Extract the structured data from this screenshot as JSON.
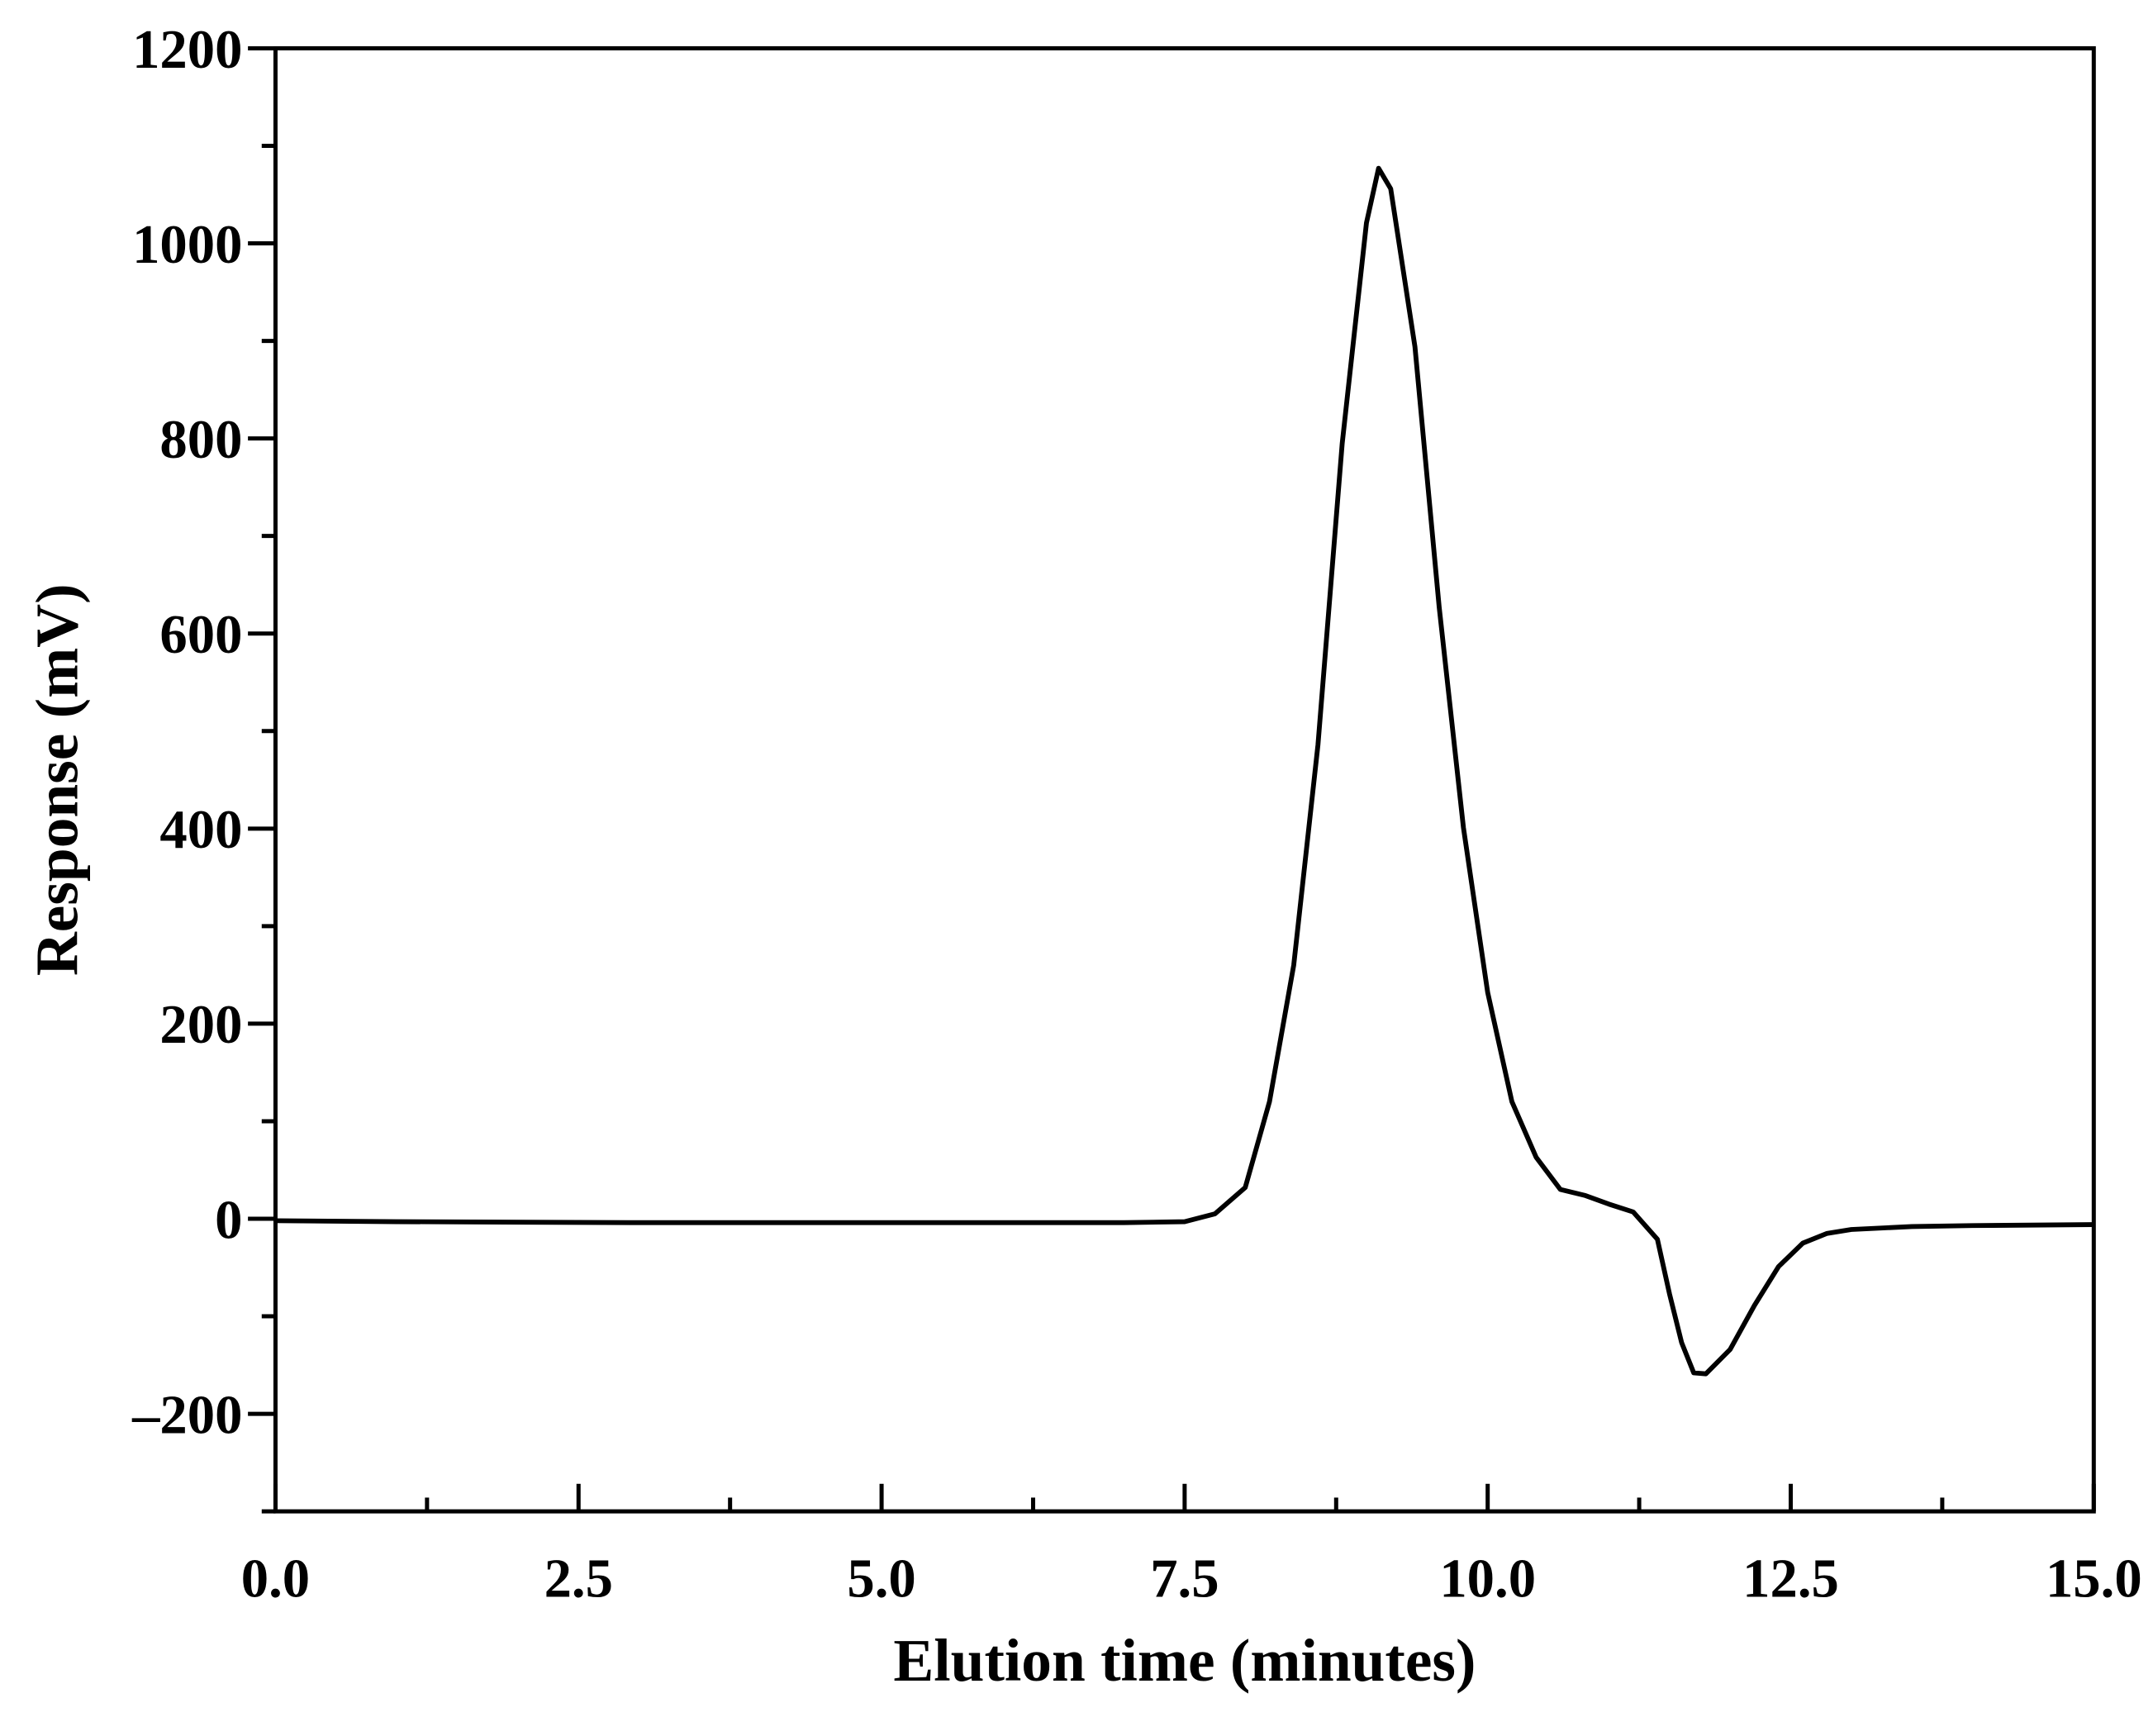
{
  "chart_data": {
    "type": "line",
    "xlabel": "Elution time (minutes)",
    "ylabel": "Response (mV)",
    "color": "#000000",
    "x": [
      0,
      1,
      3,
      5,
      7,
      7.5,
      7.75,
      8.0,
      8.2,
      8.4,
      8.6,
      8.8,
      9.0,
      9.1,
      9.2,
      9.4,
      9.6,
      9.8,
      10.0,
      10.2,
      10.4,
      10.6,
      10.8,
      11.0,
      11.2,
      11.4,
      11.5,
      11.6,
      11.7,
      11.8,
      12.0,
      12.2,
      12.4,
      12.6,
      12.8,
      13.0,
      13.5,
      14,
      15
    ],
    "values": [
      -2,
      -3,
      -4,
      -4,
      -4,
      -3,
      5,
      32,
      120,
      260,
      486,
      795,
      1021,
      1077,
      1056,
      894,
      627,
      401,
      232,
      120,
      63,
      30,
      24,
      15,
      7,
      -21,
      -77,
      -127,
      -158,
      -159,
      -134,
      -89,
      -49,
      -25,
      -15,
      -11,
      -8,
      -7,
      -6
    ],
    "xlim": [
      0,
      15
    ],
    "xticks": [
      {
        "value": 0,
        "label": "0.0"
      },
      2.5,
      {
        "value": 5,
        "label": "5.0"
      },
      7.5,
      {
        "value": 10,
        "label": "10.0"
      },
      12.5,
      {
        "value": 15,
        "label": "15.0"
      }
    ],
    "minor_xticks": [
      1.25,
      3.75,
      6.25,
      8.75,
      11.25,
      13.75
    ],
    "ylim": [
      -300,
      1200
    ],
    "yticks": [
      {
        "value": -200,
        "label": "–200"
      },
      0,
      200,
      400,
      600,
      800,
      1000,
      1200
    ],
    "minor_yticks": [
      -300,
      -100,
      100,
      300,
      500,
      700,
      900,
      1100
    ],
    "grid": false
  }
}
